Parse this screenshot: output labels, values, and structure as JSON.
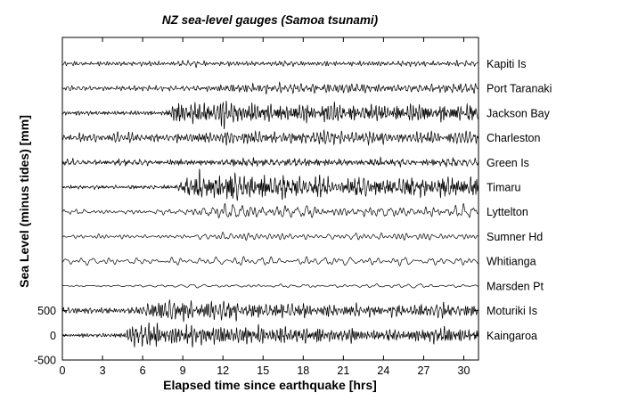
{
  "colors": {
    "background": "#ffffff",
    "trace": "#000000",
    "axis": "#000000",
    "text": "#000000"
  },
  "chart_data": {
    "type": "line",
    "title": "NZ sea-level gauges (Samoa tsunami)",
    "xlabel": "Elapsed time since earthquake [hrs]",
    "ylabel": "Sea Level (minus tides) [mm]",
    "x_ticks": [
      0,
      3,
      6,
      9,
      12,
      15,
      18,
      21,
      24,
      27,
      30
    ],
    "y_ticks": [
      500,
      0,
      -500
    ],
    "xlim": [
      0,
      31.1
    ],
    "ylim": [
      -500,
      6030
    ],
    "grid": false,
    "legend_position": "right-of-plot station labels",
    "trace_offset_step_mm": 500,
    "description": "Twelve stacked de-tided sea-level records from NZ tide gauges after the Samoa earthquake; each trace offset vertically by 500 mm; envelope points are [hours, approx peak amplitude mm].",
    "series": [
      {
        "label": "Kapiti Is",
        "offset_mm": 5500,
        "seed": 101,
        "n_osc": 14,
        "band": [
          2.2,
          11
        ],
        "envelope": [
          [
            0,
            40
          ],
          [
            12,
            45
          ],
          [
            31,
            48
          ]
        ]
      },
      {
        "label": "Port Taranaki",
        "offset_mm": 5000,
        "seed": 202,
        "n_osc": 14,
        "band": [
          2,
          10
        ],
        "envelope": [
          [
            0,
            42
          ],
          [
            9,
            48
          ],
          [
            12,
            85
          ],
          [
            31,
            80
          ]
        ]
      },
      {
        "label": "Jackson Bay",
        "offset_mm": 4500,
        "seed": 303,
        "n_osc": 14,
        "band": [
          2,
          10
        ],
        "envelope": [
          [
            0,
            35
          ],
          [
            7.6,
            38
          ],
          [
            8.4,
            210
          ],
          [
            11,
            215
          ],
          [
            15,
            180
          ],
          [
            22,
            150
          ],
          [
            31,
            140
          ]
        ]
      },
      {
        "label": "Charleston",
        "offset_mm": 4000,
        "seed": 404,
        "n_osc": 14,
        "band": [
          2.2,
          11
        ],
        "envelope": [
          [
            0,
            70
          ],
          [
            8,
            85
          ],
          [
            12,
            125
          ],
          [
            20,
            120
          ],
          [
            31,
            105
          ]
        ]
      },
      {
        "label": "Green Is",
        "offset_mm": 3500,
        "seed": 505,
        "n_osc": 14,
        "band": [
          2.2,
          11
        ],
        "envelope": [
          [
            0,
            45
          ],
          [
            9,
            55
          ],
          [
            13,
            72
          ],
          [
            31,
            60
          ]
        ]
      },
      {
        "label": "Timaru",
        "offset_mm": 3000,
        "seed": 606,
        "n_osc": 14,
        "band": [
          2,
          10
        ],
        "envelope": [
          [
            0,
            34
          ],
          [
            8.6,
            36
          ],
          [
            9.4,
            210
          ],
          [
            12,
            230
          ],
          [
            18,
            195
          ],
          [
            25,
            165
          ],
          [
            31,
            170
          ]
        ]
      },
      {
        "label": "Lyttelton",
        "offset_mm": 2500,
        "seed": 707,
        "n_osc": 8,
        "band": [
          1,
          5.5
        ],
        "envelope": [
          [
            0,
            40
          ],
          [
            7,
            42
          ],
          [
            9.5,
            60
          ],
          [
            10.5,
            95
          ],
          [
            13,
            150
          ],
          [
            15,
            110
          ],
          [
            20,
            100
          ],
          [
            26,
            90
          ],
          [
            31,
            115
          ]
        ]
      },
      {
        "label": "Sumner Hd",
        "offset_mm": 2000,
        "seed": 808,
        "n_osc": 10,
        "band": [
          0.9,
          5
        ],
        "envelope": [
          [
            0,
            30
          ],
          [
            8,
            38
          ],
          [
            11,
            68
          ],
          [
            18,
            72
          ],
          [
            31,
            55
          ]
        ]
      },
      {
        "label": "Whitianga",
        "offset_mm": 1500,
        "seed": 909,
        "n_osc": 10,
        "band": [
          0.7,
          3.5
        ],
        "tone": {
          "freq": 1.5,
          "weight": 2.2
        },
        "envelope": [
          [
            0,
            62
          ],
          [
            10,
            62
          ],
          [
            13,
            82
          ],
          [
            20,
            75
          ],
          [
            31,
            68
          ]
        ]
      },
      {
        "label": "Marsden Pt",
        "offset_mm": 1000,
        "seed": 111,
        "n_osc": 10,
        "band": [
          0.5,
          3
        ],
        "envelope": [
          [
            0,
            18
          ],
          [
            11,
            22
          ],
          [
            14,
            36
          ],
          [
            31,
            30
          ]
        ]
      },
      {
        "label": "Moturiki Is",
        "offset_mm": 500,
        "seed": 222,
        "n_osc": 14,
        "band": [
          2.5,
          12
        ],
        "envelope": [
          [
            0,
            55
          ],
          [
            5.6,
            55
          ],
          [
            6.4,
            155
          ],
          [
            8,
            185
          ],
          [
            12,
            165
          ],
          [
            18,
            125
          ],
          [
            24,
            95
          ],
          [
            28,
            120
          ],
          [
            31,
            110
          ]
        ]
      },
      {
        "label": "Kaingaroa",
        "offset_mm": 0,
        "seed": 333,
        "n_osc": 14,
        "band": [
          2.5,
          12
        ],
        "envelope": [
          [
            0,
            36
          ],
          [
            4.5,
            36
          ],
          [
            5,
            160
          ],
          [
            5.5,
            330
          ],
          [
            6.3,
            190
          ],
          [
            10,
            165
          ],
          [
            16,
            145
          ],
          [
            22,
            115
          ],
          [
            25,
            95
          ],
          [
            28,
            155
          ],
          [
            31,
            125
          ]
        ]
      }
    ]
  }
}
